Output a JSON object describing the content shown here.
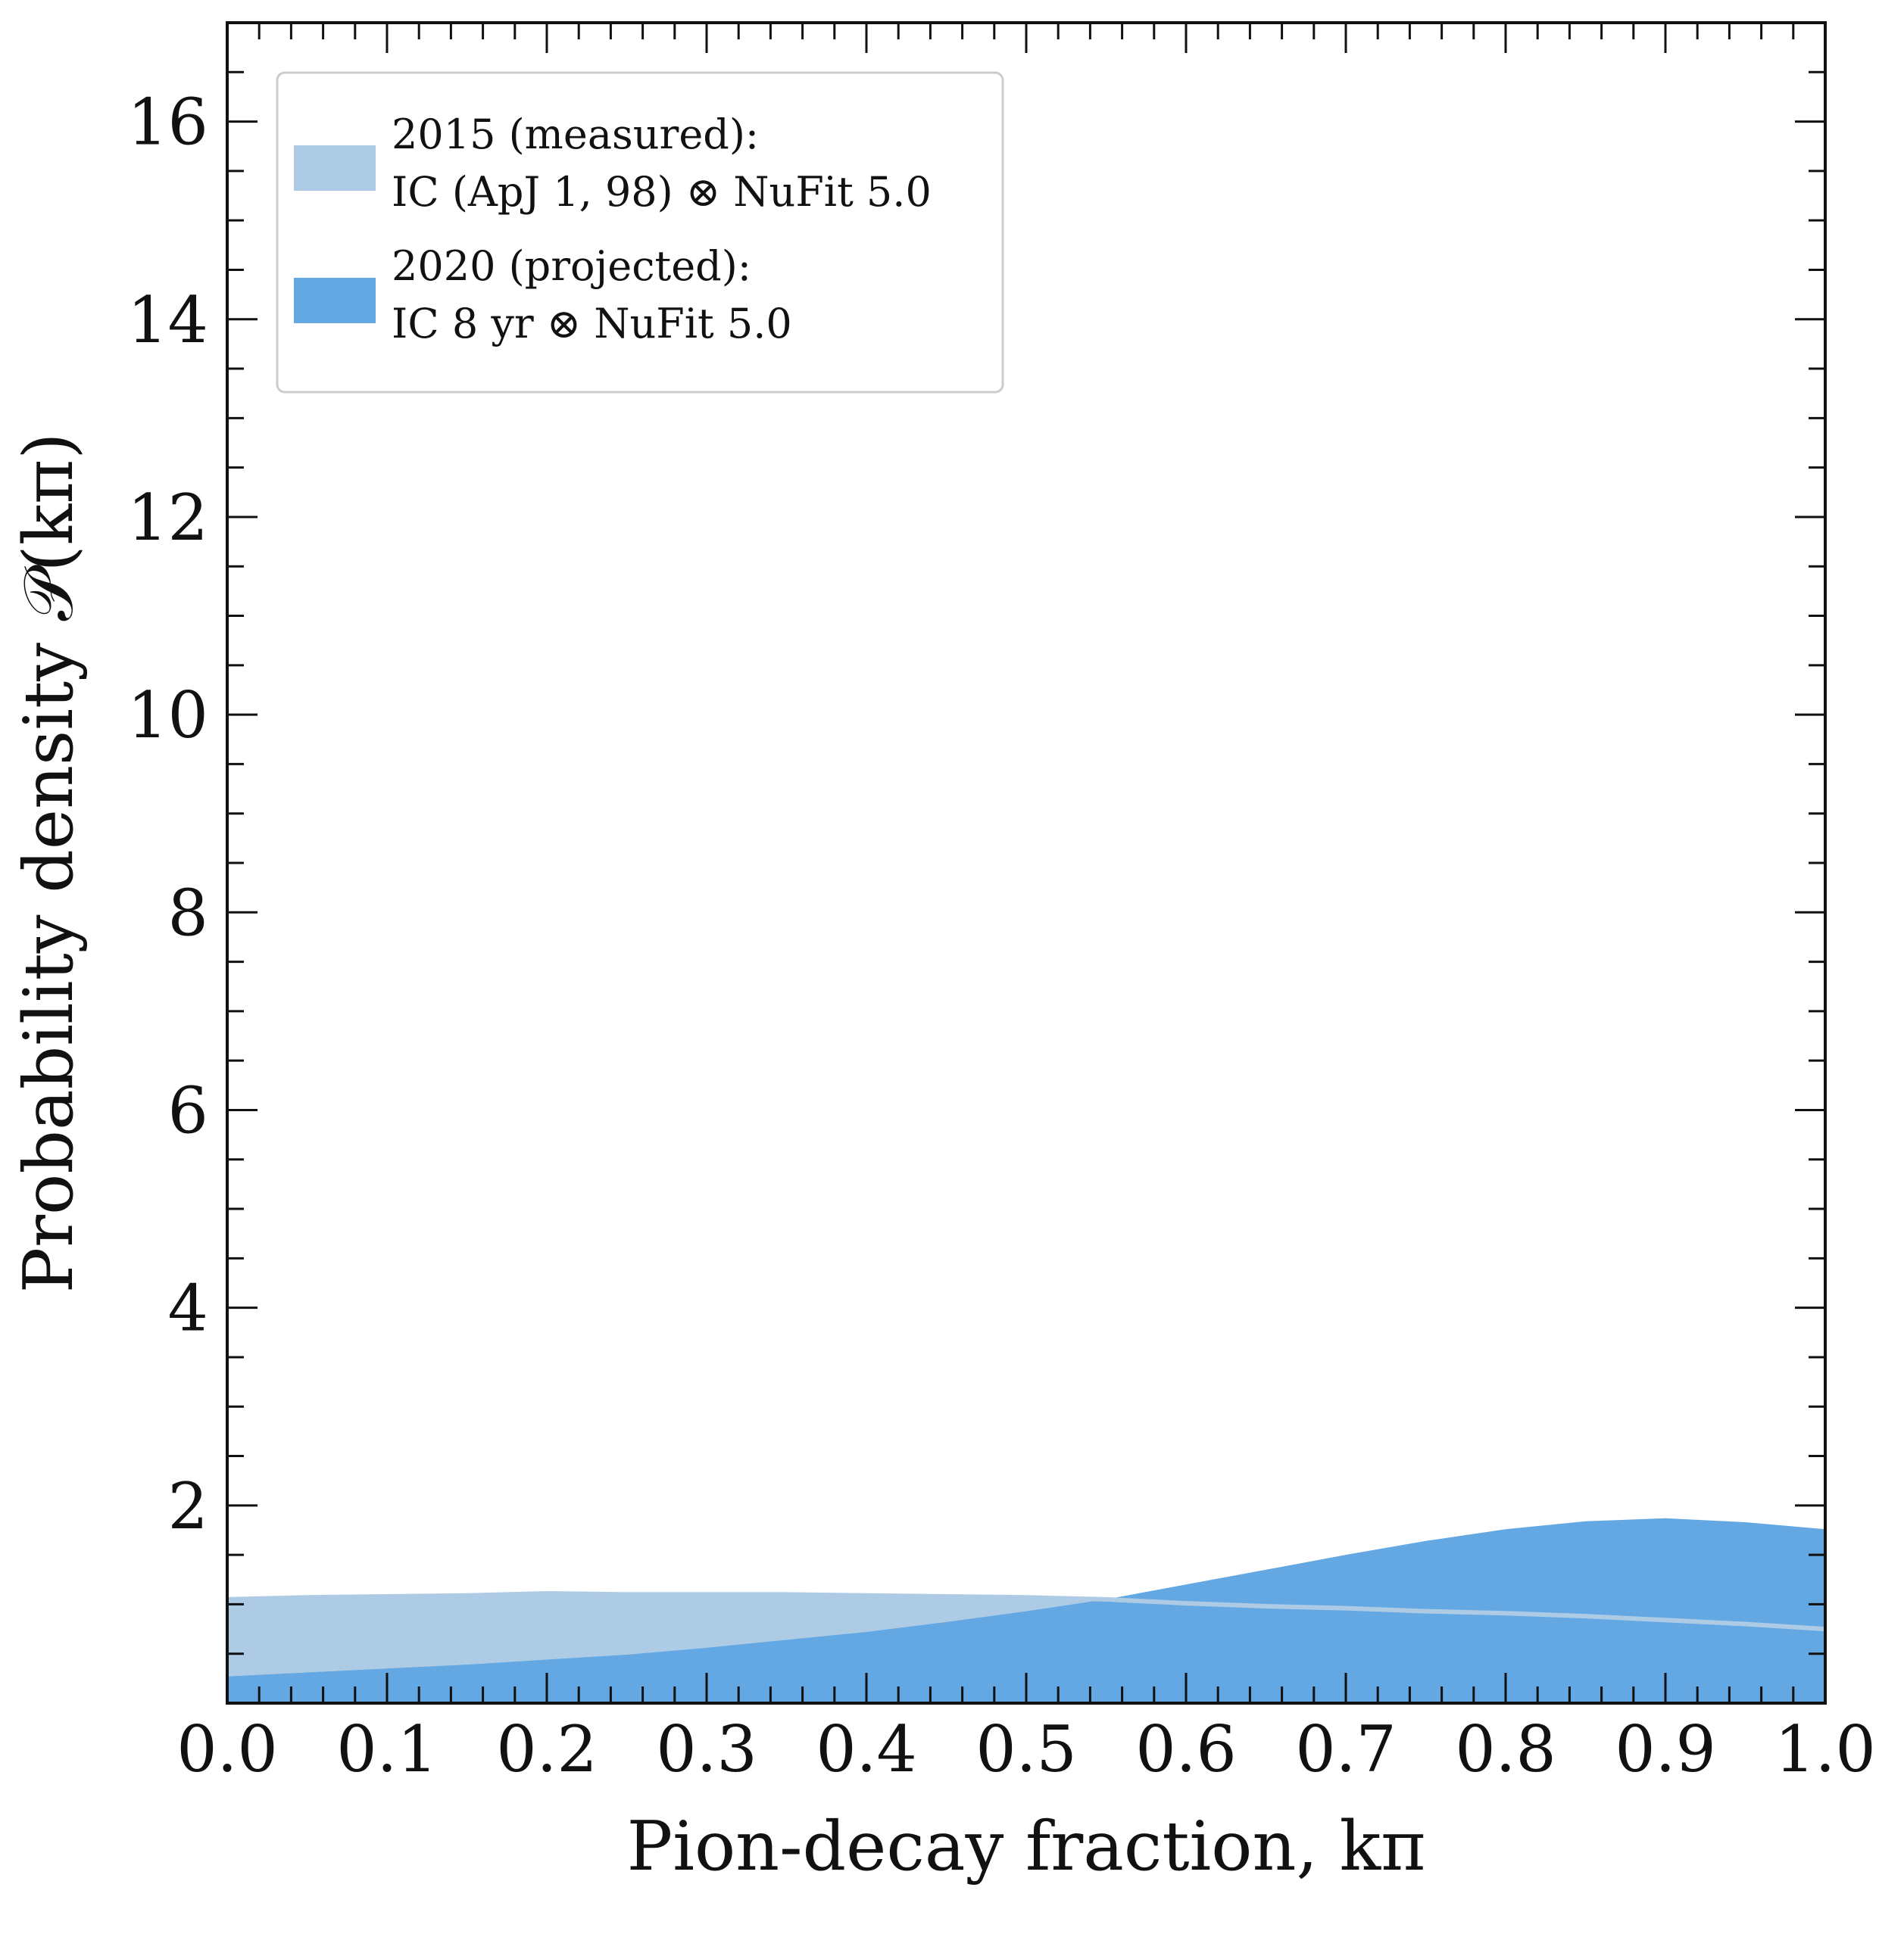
{
  "chart_data": {
    "type": "area",
    "xlabel": "Pion-decay fraction, kπ",
    "ylabel": "Probability density 𝒫(kπ)",
    "xlim": [
      0,
      1
    ],
    "ylim": [
      0,
      17
    ],
    "xticks": [
      "0.0",
      "0.1",
      "0.2",
      "0.3",
      "0.4",
      "0.5",
      "0.6",
      "0.7",
      "0.8",
      "0.9",
      "1.0"
    ],
    "yticks": [
      "2",
      "4",
      "6",
      "8",
      "10",
      "12",
      "14",
      "16"
    ],
    "ytick_values": [
      2,
      4,
      6,
      8,
      10,
      12,
      14,
      16
    ],
    "grid": false,
    "legend_position": "top-left",
    "series": [
      {
        "legend_line1": "2015 (measured):",
        "legend_line2": "IC (ApJ 1, 98) ⊗ NuFit 5.0",
        "color": "#aecbe5",
        "x": [
          0.0,
          0.05,
          0.1,
          0.15,
          0.2,
          0.25,
          0.3,
          0.35,
          0.4,
          0.45,
          0.5,
          0.55,
          0.6,
          0.65,
          0.7,
          0.75,
          0.8,
          0.85,
          0.9,
          0.95,
          1.0
        ],
        "y": [
          1.05,
          1.07,
          1.08,
          1.09,
          1.11,
          1.1,
          1.1,
          1.1,
          1.09,
          1.08,
          1.07,
          1.05,
          1.01,
          0.98,
          0.96,
          0.93,
          0.91,
          0.88,
          0.84,
          0.8,
          0.75
        ]
      },
      {
        "legend_line1": "2020 (projected):",
        "legend_line2": "IC 8 yr ⊗ NuFit 5.0",
        "color": "#63a8e2",
        "x": [
          0.0,
          0.05,
          0.1,
          0.15,
          0.2,
          0.25,
          0.3,
          0.35,
          0.4,
          0.45,
          0.5,
          0.55,
          0.6,
          0.65,
          0.7,
          0.75,
          0.8,
          0.85,
          0.9,
          0.95,
          1.0
        ],
        "y": [
          0.27,
          0.31,
          0.35,
          0.39,
          0.44,
          0.49,
          0.56,
          0.64,
          0.72,
          0.82,
          0.93,
          1.05,
          1.2,
          1.35,
          1.5,
          1.64,
          1.76,
          1.84,
          1.87,
          1.83,
          1.76
        ]
      }
    ]
  }
}
